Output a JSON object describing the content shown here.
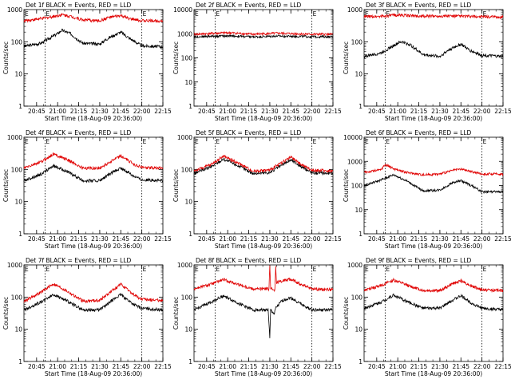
{
  "colors": {
    "black": "#000000",
    "red": "#e00000",
    "background": "#ffffff"
  },
  "chart_data": [
    {
      "type": "line",
      "title": "Det 1f BLACK = Events, RED = LLD",
      "xlabel": "Start Time (18-Aug-09 20:36:00)",
      "ylabel": "Counts/sec",
      "yscale": "log",
      "ymax": 1000,
      "ylim": [
        1,
        1000
      ],
      "x_ticks": [
        "20:45",
        "21:00",
        "21:15",
        "21:30",
        "21:45",
        "22:00",
        "22:15"
      ],
      "vlines": [
        "20:51",
        "22:00"
      ],
      "markers": [
        "E",
        "E"
      ],
      "series": [
        {
          "color": "#000000",
          "values": [
            [
              20.6,
              72
            ],
            [
              20.8,
              90
            ],
            [
              21.0,
              180
            ],
            [
              21.05,
              230
            ],
            [
              21.15,
              180
            ],
            [
              21.3,
              90
            ],
            [
              21.5,
              85
            ],
            [
              21.6,
              130
            ],
            [
              21.75,
              200
            ],
            [
              21.85,
              130
            ],
            [
              22.0,
              75
            ],
            [
              22.25,
              70
            ]
          ]
        },
        {
          "color": "#e00000",
          "values": [
            [
              20.6,
              450
            ],
            [
              20.8,
              520
            ],
            [
              21.0,
              650
            ],
            [
              21.05,
              700
            ],
            [
              21.15,
              620
            ],
            [
              21.3,
              480
            ],
            [
              21.5,
              450
            ],
            [
              21.6,
              560
            ],
            [
              21.75,
              650
            ],
            [
              21.85,
              520
            ],
            [
              22.0,
              450
            ],
            [
              22.25,
              450
            ]
          ]
        }
      ]
    },
    {
      "type": "line",
      "title": "Det 2f BLACK = Events, RED = LLD",
      "xlabel": "Start Time (18-Aug-09 20:36:00)",
      "ylabel": "Counts/sec",
      "yscale": "log",
      "ymax": 10000,
      "ylim": [
        1,
        10000
      ],
      "x_ticks": [
        "20:45",
        "21:00",
        "21:15",
        "21:30",
        "21:45",
        "22:00",
        "22:15"
      ],
      "vlines": [
        "20:51",
        "22:00"
      ],
      "markers": [
        "E",
        "E"
      ],
      "series": [
        {
          "color": "#000000",
          "values": [
            [
              20.6,
              750
            ],
            [
              21.0,
              820
            ],
            [
              21.3,
              740
            ],
            [
              21.6,
              800
            ],
            [
              22.0,
              760
            ],
            [
              22.25,
              740
            ]
          ]
        },
        {
          "color": "#e00000",
          "values": [
            [
              20.6,
              950
            ],
            [
              21.0,
              1100
            ],
            [
              21.3,
              950
            ],
            [
              21.6,
              1050
            ],
            [
              22.0,
              950
            ],
            [
              22.25,
              950
            ]
          ]
        }
      ]
    },
    {
      "type": "line",
      "title": "Det 3f BLACK = Events, RED = LLD",
      "xlabel": "Start Time (18-Aug-09 20:36:00)",
      "ylabel": "Counts/sec",
      "yscale": "log",
      "ymax": 1000,
      "ylim": [
        1,
        1000
      ],
      "x_ticks": [
        "20:45",
        "21:00",
        "21:15",
        "21:30",
        "21:45",
        "22:00",
        "22:15"
      ],
      "vlines": [
        "20:51",
        "22:00"
      ],
      "markers": [
        "E",
        "E"
      ],
      "series": [
        {
          "color": "#000000",
          "values": [
            [
              20.6,
              35
            ],
            [
              20.8,
              45
            ],
            [
              21.0,
              90
            ],
            [
              21.05,
              100
            ],
            [
              21.15,
              80
            ],
            [
              21.3,
              40
            ],
            [
              21.5,
              35
            ],
            [
              21.6,
              55
            ],
            [
              21.75,
              85
            ],
            [
              21.85,
              55
            ],
            [
              22.0,
              38
            ],
            [
              22.25,
              35
            ]
          ]
        },
        {
          "color": "#e00000",
          "values": [
            [
              20.6,
              600
            ],
            [
              20.8,
              620
            ],
            [
              21.0,
              680
            ],
            [
              21.3,
              620
            ],
            [
              21.6,
              640
            ],
            [
              22.0,
              600
            ],
            [
              22.25,
              580
            ]
          ]
        }
      ]
    },
    {
      "type": "line",
      "title": "Det 4f BLACK = Events, RED = LLD",
      "xlabel": "Start Time (18-Aug-09 20:36:00)",
      "ylabel": "Counts/sec",
      "yscale": "log",
      "ymax": 1000,
      "ylim": [
        1,
        1000
      ],
      "x_ticks": [
        "20:45",
        "21:00",
        "21:15",
        "21:30",
        "21:45",
        "22:00",
        "22:15"
      ],
      "vlines": [
        "20:51",
        "22:00"
      ],
      "markers": [
        "E",
        "E"
      ],
      "series": [
        {
          "color": "#000000",
          "values": [
            [
              20.6,
              45
            ],
            [
              20.8,
              70
            ],
            [
              20.95,
              130
            ],
            [
              21.1,
              90
            ],
            [
              21.3,
              45
            ],
            [
              21.5,
              45
            ],
            [
              21.65,
              80
            ],
            [
              21.75,
              110
            ],
            [
              21.9,
              65
            ],
            [
              22.0,
              48
            ],
            [
              22.25,
              45
            ]
          ]
        },
        {
          "color": "#e00000",
          "values": [
            [
              20.6,
              110
            ],
            [
              20.8,
              170
            ],
            [
              20.95,
              300
            ],
            [
              21.1,
              210
            ],
            [
              21.3,
              110
            ],
            [
              21.5,
              110
            ],
            [
              21.65,
              190
            ],
            [
              21.75,
              260
            ],
            [
              21.9,
              150
            ],
            [
              22.0,
              115
            ],
            [
              22.25,
              110
            ]
          ]
        }
      ]
    },
    {
      "type": "line",
      "title": "Det 5f BLACK = Events, RED = LLD",
      "xlabel": "Start Time (18-Aug-09 20:36:00)",
      "ylabel": "Counts/sec",
      "yscale": "log",
      "ymax": 1000,
      "ylim": [
        1,
        1000
      ],
      "x_ticks": [
        "20:45",
        "21:00",
        "21:15",
        "21:30",
        "21:45",
        "22:00",
        "22:15"
      ],
      "vlines": [
        "20:51",
        "22:00"
      ],
      "markers": [
        "E",
        "E"
      ],
      "series": [
        {
          "color": "#000000",
          "values": [
            [
              20.6,
              75
            ],
            [
              20.8,
              120
            ],
            [
              20.95,
              210
            ],
            [
              21.1,
              140
            ],
            [
              21.3,
              75
            ],
            [
              21.5,
              80
            ],
            [
              21.65,
              140
            ],
            [
              21.75,
              200
            ],
            [
              21.9,
              110
            ],
            [
              22.0,
              80
            ],
            [
              22.25,
              75
            ]
          ]
        },
        {
          "color": "#e00000",
          "values": [
            [
              20.6,
              90
            ],
            [
              20.8,
              140
            ],
            [
              20.95,
              260
            ],
            [
              21.1,
              170
            ],
            [
              21.3,
              90
            ],
            [
              21.5,
              95
            ],
            [
              21.65,
              170
            ],
            [
              21.75,
              240
            ],
            [
              21.9,
              130
            ],
            [
              22.0,
              95
            ],
            [
              22.25,
              90
            ]
          ]
        }
      ]
    },
    {
      "type": "line",
      "title": "Det 6f BLACK = Events, RED = LLD",
      "xlabel": "Start Time (18-Aug-09 20:36:00)",
      "ylabel": "Counts/sec",
      "yscale": "log",
      "ymax": 10000,
      "ylim": [
        1,
        10000
      ],
      "x_ticks": [
        "20:45",
        "21:00",
        "21:15",
        "21:30",
        "21:45",
        "22:00",
        "22:15"
      ],
      "vlines": [
        "20:51",
        "22:00"
      ],
      "markers": [
        "E",
        "E"
      ],
      "series": [
        {
          "color": "#000000",
          "values": [
            [
              20.6,
              100
            ],
            [
              20.8,
              170
            ],
            [
              20.95,
              280
            ],
            [
              21.1,
              160
            ],
            [
              21.3,
              60
            ],
            [
              21.5,
              65
            ],
            [
              21.65,
              130
            ],
            [
              21.75,
              160
            ],
            [
              21.9,
              90
            ],
            [
              22.0,
              55
            ],
            [
              22.25,
              55
            ]
          ]
        },
        {
          "color": "#e00000",
          "values": [
            [
              20.6,
              350
            ],
            [
              20.8,
              450
            ],
            [
              20.85,
              750
            ],
            [
              20.95,
              500
            ],
            [
              21.1,
              350
            ],
            [
              21.3,
              280
            ],
            [
              21.5,
              300
            ],
            [
              21.65,
              420
            ],
            [
              21.75,
              480
            ],
            [
              21.9,
              360
            ],
            [
              22.0,
              300
            ],
            [
              22.25,
              300
            ]
          ]
        }
      ]
    },
    {
      "type": "line",
      "title": "Det 7f BLACK = Events, RED = LLD",
      "xlabel": "Start Time (18-Aug-09 20:36:00)",
      "ylabel": "Counts/sec",
      "yscale": "log",
      "ymax": 1000,
      "ylim": [
        1,
        1000
      ],
      "x_ticks": [
        "20:45",
        "21:00",
        "21:15",
        "21:30",
        "21:45",
        "22:00",
        "22:15"
      ],
      "vlines": [
        "20:51",
        "22:00"
      ],
      "markers": [
        "E",
        "E"
      ],
      "series": [
        {
          "color": "#000000",
          "values": [
            [
              20.6,
              40
            ],
            [
              20.8,
              70
            ],
            [
              20.95,
              120
            ],
            [
              21.1,
              80
            ],
            [
              21.3,
              40
            ],
            [
              21.5,
              40
            ],
            [
              21.65,
              80
            ],
            [
              21.75,
              120
            ],
            [
              21.9,
              60
            ],
            [
              22.0,
              45
            ],
            [
              22.25,
              40
            ]
          ]
        },
        {
          "color": "#e00000",
          "values": [
            [
              20.6,
              75
            ],
            [
              20.8,
              140
            ],
            [
              20.95,
              260
            ],
            [
              21.1,
              160
            ],
            [
              21.3,
              75
            ],
            [
              21.5,
              80
            ],
            [
              21.65,
              160
            ],
            [
              21.75,
              250
            ],
            [
              21.9,
              120
            ],
            [
              22.0,
              85
            ],
            [
              22.25,
              80
            ]
          ]
        }
      ]
    },
    {
      "type": "line",
      "title": "Det 8f BLACK = Events, RED = LLD",
      "xlabel": "Start Time (18-Aug-09 20:36:00)",
      "ylabel": "Counts/sec",
      "yscale": "log",
      "ymax": 1000,
      "ylim": [
        1,
        1000
      ],
      "x_ticks": [
        "20:45",
        "21:00",
        "21:15",
        "21:30",
        "21:45",
        "22:00",
        "22:15"
      ],
      "vlines": [
        "20:51",
        "22:00"
      ],
      "markers": [
        "E",
        "E"
      ],
      "series": [
        {
          "color": "#000000",
          "values": [
            [
              20.6,
              40
            ],
            [
              20.8,
              70
            ],
            [
              20.95,
              110
            ],
            [
              21.1,
              70
            ],
            [
              21.3,
              40
            ],
            [
              21.48,
              40
            ],
            [
              21.5,
              5
            ],
            [
              21.51,
              40
            ],
            [
              21.55,
              30
            ],
            [
              21.57,
              45
            ],
            [
              21.65,
              80
            ],
            [
              21.75,
              95
            ],
            [
              21.9,
              55
            ],
            [
              22.0,
              40
            ],
            [
              22.25,
              40
            ]
          ]
        },
        {
          "color": "#e00000",
          "values": [
            [
              20.6,
              180
            ],
            [
              20.8,
              250
            ],
            [
              20.95,
              350
            ],
            [
              21.1,
              260
            ],
            [
              21.3,
              180
            ],
            [
              21.49,
              180
            ],
            [
              21.5,
              1000
            ],
            [
              21.51,
              180
            ],
            [
              21.56,
              170
            ],
            [
              21.57,
              1000
            ],
            [
              21.58,
              280
            ],
            [
              21.65,
              330
            ],
            [
              21.75,
              360
            ],
            [
              21.9,
              230
            ],
            [
              22.0,
              180
            ],
            [
              22.25,
              170
            ]
          ]
        }
      ]
    },
    {
      "type": "line",
      "title": "Det 9f BLACK = Events, RED = LLD",
      "xlabel": "Start Time (18-Aug-09 20:36:00)",
      "ylabel": "Counts/sec",
      "yscale": "log",
      "ymax": 1000,
      "ylim": [
        1,
        1000
      ],
      "x_ticks": [
        "20:45",
        "21:00",
        "21:15",
        "21:30",
        "21:45",
        "22:00",
        "22:15"
      ],
      "vlines": [
        "20:51",
        "22:00"
      ],
      "markers": [
        "E",
        "E"
      ],
      "series": [
        {
          "color": "#000000",
          "values": [
            [
              20.6,
              45
            ],
            [
              20.8,
              70
            ],
            [
              20.95,
              115
            ],
            [
              21.1,
              75
            ],
            [
              21.3,
              45
            ],
            [
              21.5,
              45
            ],
            [
              21.65,
              80
            ],
            [
              21.75,
              110
            ],
            [
              21.9,
              60
            ],
            [
              22.0,
              45
            ],
            [
              22.25,
              40
            ]
          ]
        },
        {
          "color": "#e00000",
          "values": [
            [
              20.6,
              160
            ],
            [
              20.8,
              230
            ],
            [
              20.95,
              340
            ],
            [
              21.1,
              240
            ],
            [
              21.3,
              160
            ],
            [
              21.5,
              160
            ],
            [
              21.65,
              260
            ],
            [
              21.75,
              320
            ],
            [
              21.9,
              210
            ],
            [
              22.0,
              170
            ],
            [
              22.25,
              160
            ]
          ]
        }
      ]
    }
  ]
}
